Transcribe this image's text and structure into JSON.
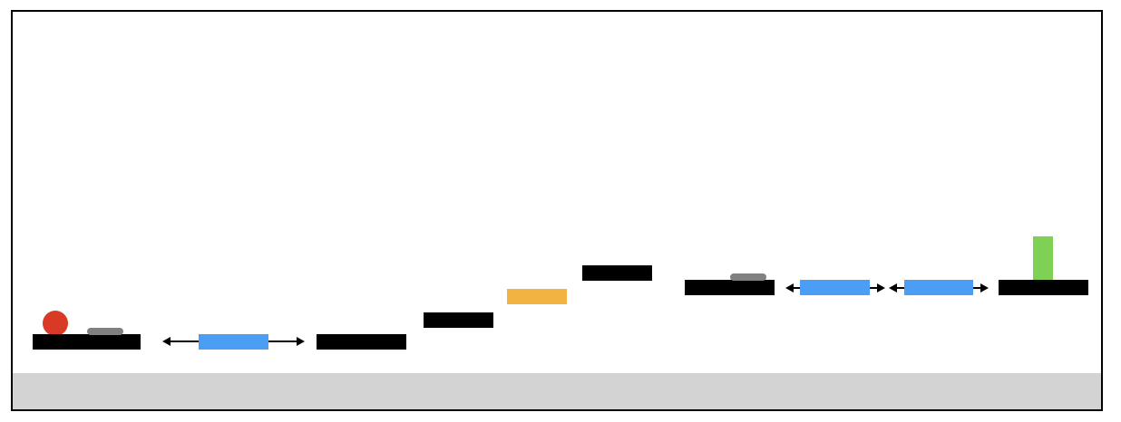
{
  "colors": {
    "background": "#ffffff",
    "frame": "#000000",
    "ground": "#d3d3d3",
    "platform": "#000000",
    "switch": "#808080",
    "moving_platform": "#4a9ff5",
    "bouncy_block": "#f2b340",
    "goal": "#7fd155",
    "player": "#d93a26",
    "arrow": "#000000"
  },
  "level": {
    "player": {
      "shape": "circle",
      "color_key": "player"
    },
    "platforms": [
      {
        "id": "start"
      },
      {
        "id": "mid-1"
      },
      {
        "id": "step-1"
      },
      {
        "id": "step-2"
      },
      {
        "id": "switch-ledge"
      },
      {
        "id": "goal-ledge"
      }
    ],
    "switches": [
      {
        "id": "switch-1"
      },
      {
        "id": "switch-2"
      }
    ],
    "moving_platforms": [
      {
        "id": "mover-1",
        "direction": "horizontal"
      },
      {
        "id": "mover-2",
        "direction": "horizontal"
      },
      {
        "id": "mover-3",
        "direction": "horizontal"
      }
    ],
    "bouncy_blocks": [
      {
        "id": "bouncy-1"
      }
    ],
    "goal": {
      "shape": "rectangle",
      "color_key": "goal"
    }
  }
}
